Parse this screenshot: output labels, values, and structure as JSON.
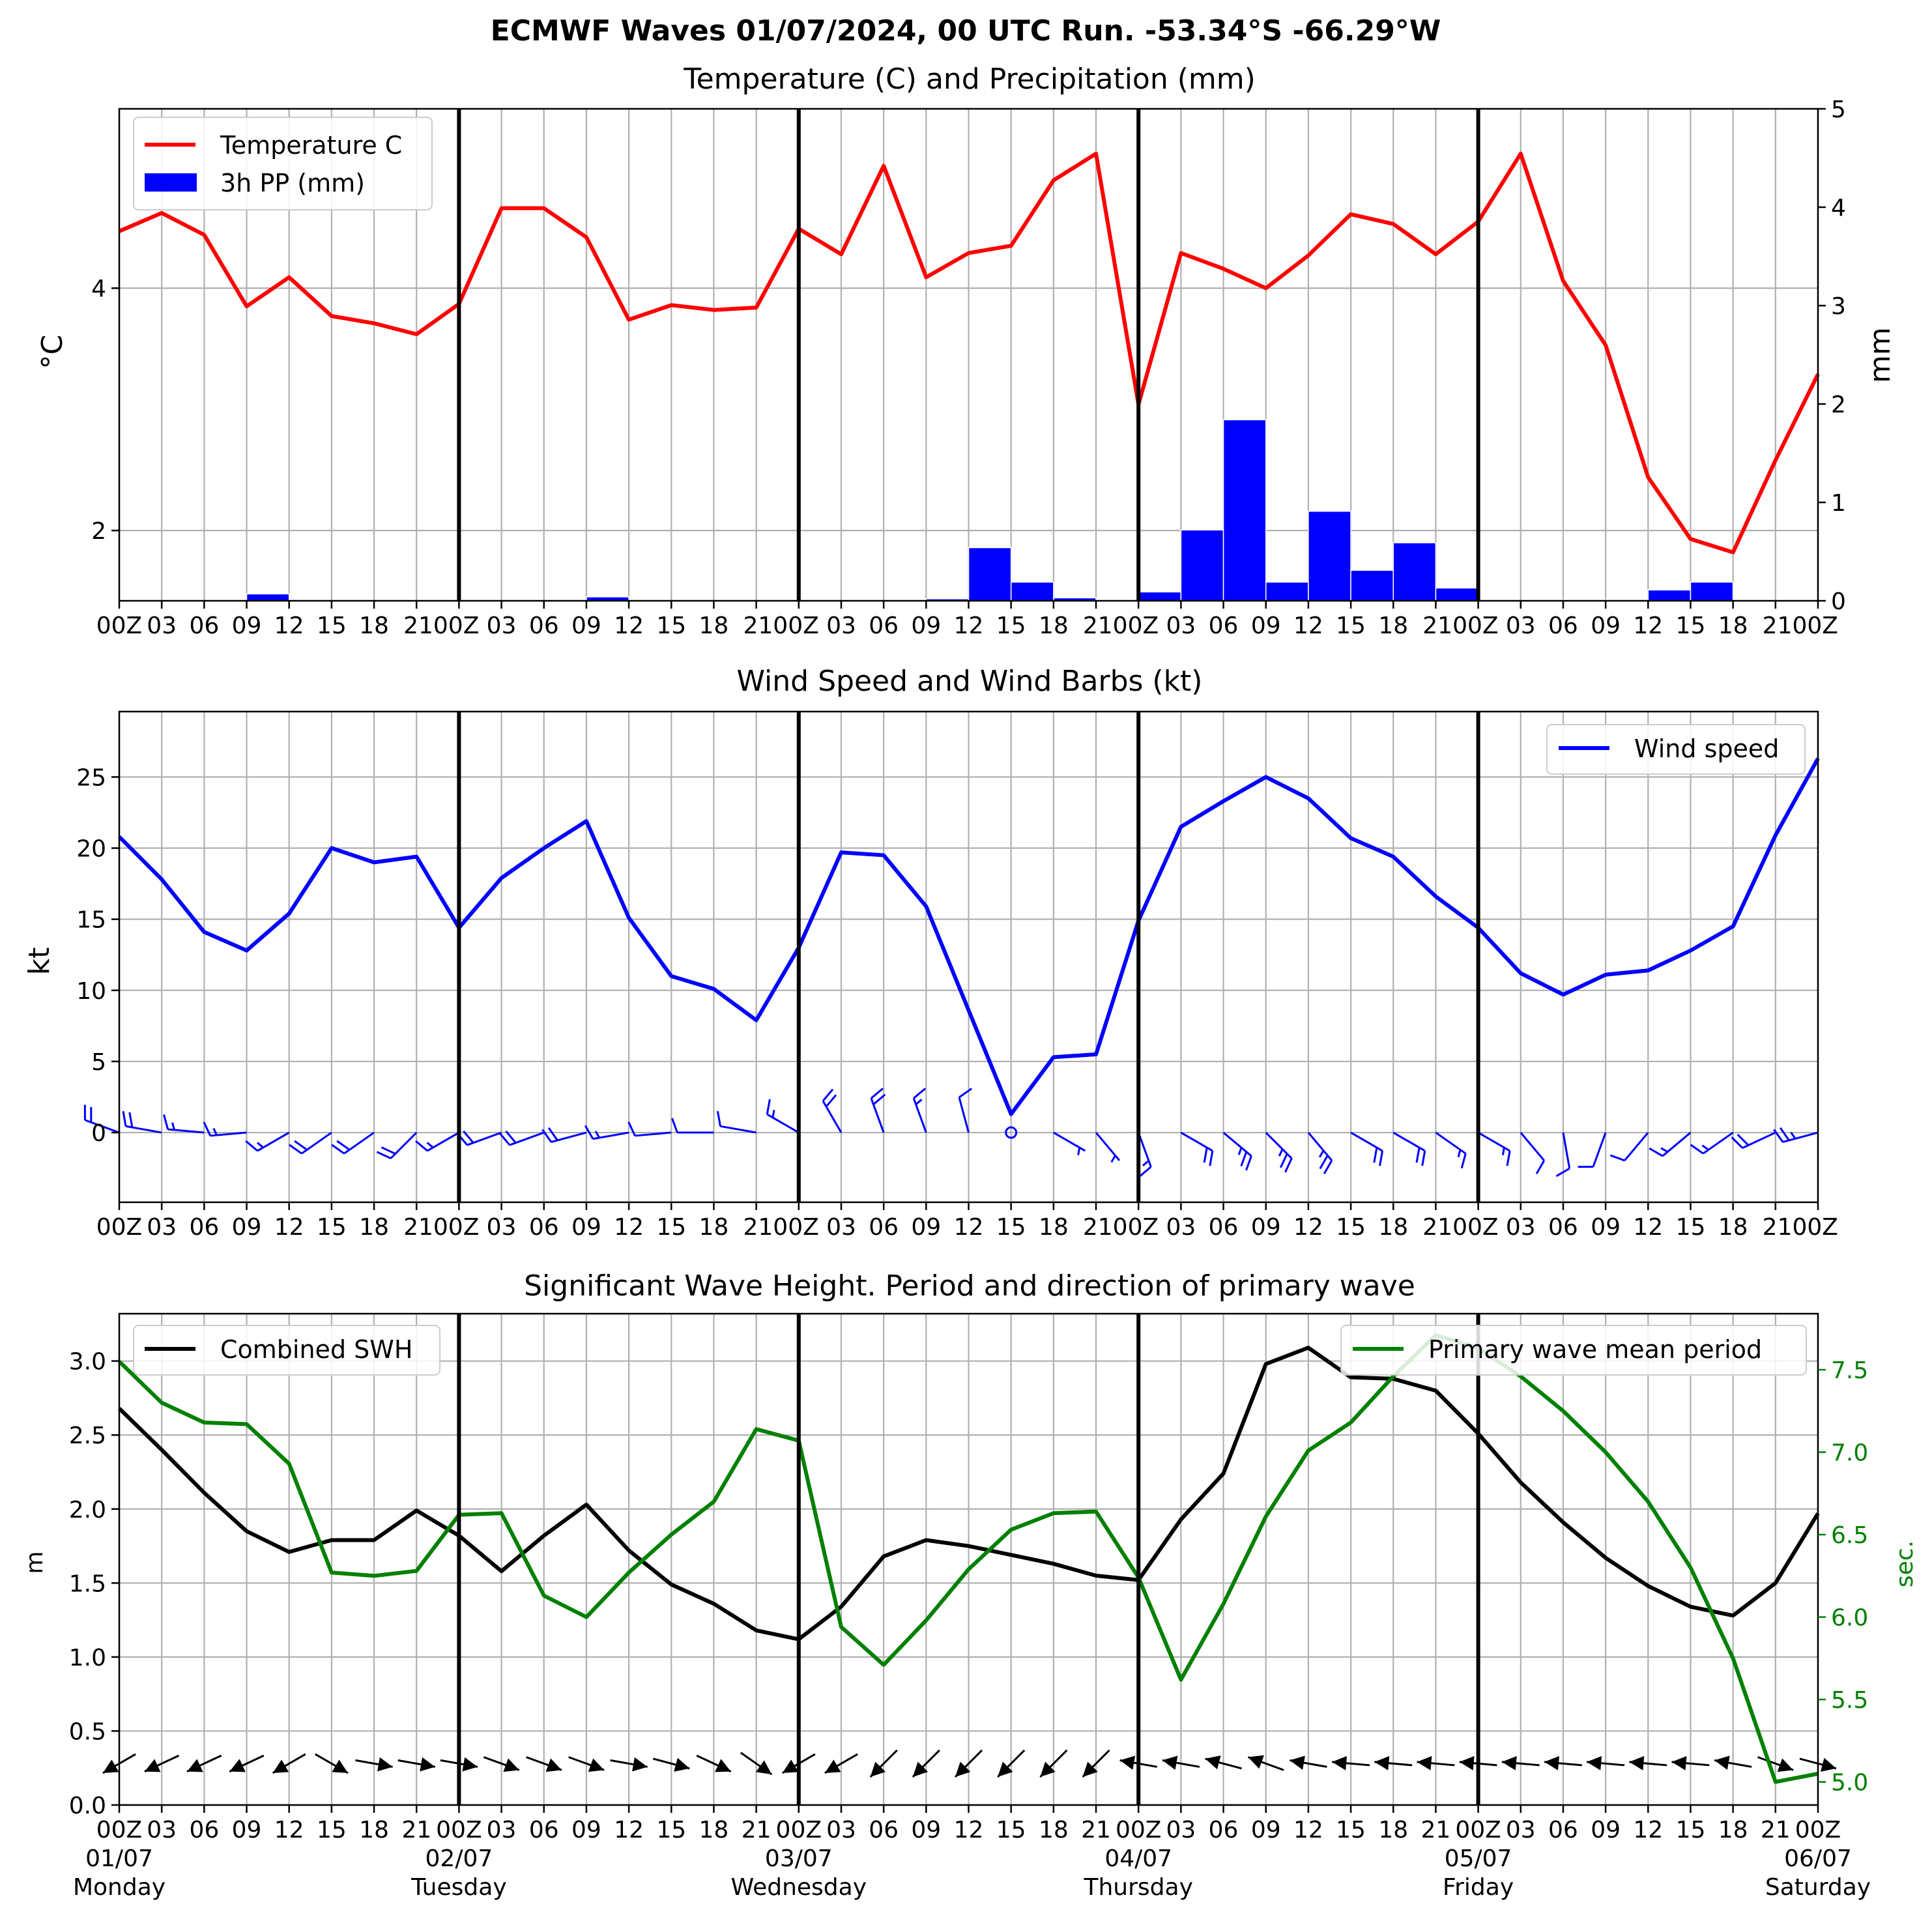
{
  "suptitle": "ECMWF Waves 01/07/2024, 00 UTC Run. -53.34°S -66.29°W",
  "colors": {
    "temperature": "#ff0000",
    "precip": "#0000ff",
    "wind": "#0000ff",
    "swh": "#000000",
    "period": "#008000",
    "grid": "#b0b0b0",
    "day_line": "#000000"
  },
  "x_axis": {
    "hour_ticks": [
      "00Z",
      "03",
      "06",
      "09",
      "12",
      "15",
      "18",
      "21",
      "00Z",
      "03",
      "06",
      "09",
      "12",
      "15",
      "18",
      "21",
      "00Z",
      "03",
      "06",
      "09",
      "12",
      "15",
      "18",
      "21",
      "00Z",
      "03",
      "06",
      "09",
      "12",
      "15",
      "18",
      "21",
      "00Z",
      "03",
      "06",
      "09",
      "12",
      "15",
      "18",
      "21",
      "00Z"
    ],
    "upper_tick_labels": [
      "00Z",
      "03",
      "06",
      "09",
      "12",
      "15",
      "18",
      "2100Z",
      "03",
      "06",
      "09",
      "12",
      "15",
      "18",
      "2100Z",
      "03",
      "06",
      "09",
      "12",
      "15",
      "18",
      "2100Z",
      "03",
      "06",
      "09",
      "12",
      "15",
      "18",
      "2100Z",
      "03",
      "06",
      "09",
      "12",
      "15",
      "18",
      "2100Z"
    ],
    "bottom_tick_labels": [
      "00Z",
      "03",
      "06",
      "09",
      "12",
      "15",
      "18",
      "21",
      "00Z",
      "03",
      "06",
      "09",
      "12",
      "15",
      "18",
      "21",
      "00Z",
      "03",
      "06",
      "09",
      "12",
      "15",
      "18",
      "21",
      "00Z",
      "03",
      "06",
      "09",
      "12",
      "15",
      "18",
      "21",
      "00Z",
      "03",
      "06",
      "09",
      "12",
      "15",
      "18",
      "21",
      "00Z"
    ],
    "day_dates": [
      "01/07",
      "02/07",
      "03/07",
      "04/07",
      "05/07",
      "06/07"
    ],
    "day_names": [
      "Monday",
      "Tuesday",
      "Wednesday",
      "Thursday",
      "Friday",
      "Saturday"
    ],
    "range_hours": [
      0,
      120
    ]
  },
  "chart_data": [
    {
      "type": "line",
      "title": "Temperature (C) and Precipitation (mm)",
      "ylabel": "°C",
      "y2label": "mm",
      "ylim": [
        1.42,
        5.48
      ],
      "y2lim": [
        0,
        5
      ],
      "yticks": [
        2,
        4
      ],
      "y2ticks": [
        0,
        1,
        2,
        3,
        4,
        5
      ],
      "legend": "upper-left",
      "grid": true,
      "x_hours": [
        0,
        3,
        6,
        9,
        12,
        15,
        18,
        21,
        24,
        27,
        30,
        33,
        36,
        39,
        42,
        45,
        48,
        51,
        54,
        57,
        60,
        63,
        66,
        69,
        72,
        75,
        78,
        81,
        84,
        87,
        90,
        93,
        96,
        99,
        102,
        105,
        108,
        111,
        114,
        117,
        120
      ],
      "series": [
        {
          "name": "Temperature C",
          "kind": "line",
          "axis": "left",
          "values": [
            4.47,
            4.62,
            4.44,
            3.85,
            4.09,
            3.77,
            3.71,
            3.62,
            3.87,
            4.66,
            4.66,
            4.42,
            3.74,
            3.86,
            3.82,
            3.84,
            4.49,
            4.28,
            5.01,
            4.09,
            4.29,
            4.35,
            4.89,
            5.11,
            3.04,
            4.29,
            4.16,
            4.0,
            4.27,
            4.61,
            4.53,
            4.28,
            4.55,
            5.11,
            4.06,
            3.53,
            2.44,
            1.93,
            1.82,
            2.58,
            3.29
          ]
        },
        {
          "name": "3h PP (mm)",
          "kind": "bar",
          "axis": "right",
          "start_hours": [
            0,
            3,
            6,
            9,
            12,
            15,
            18,
            21,
            24,
            27,
            30,
            33,
            36,
            39,
            42,
            45,
            48,
            51,
            54,
            57,
            60,
            63,
            66,
            69,
            72,
            75,
            78,
            81,
            84,
            87,
            90,
            93,
            96,
            99,
            102,
            105,
            108,
            111,
            114,
            117
          ],
          "values": [
            0,
            0,
            0,
            0.07,
            0,
            0,
            0,
            0,
            0,
            0,
            0,
            0.04,
            0,
            0,
            0,
            0,
            0,
            0,
            0,
            0.02,
            0.54,
            0.19,
            0.03,
            0,
            0.09,
            0.72,
            1.84,
            0.19,
            0.91,
            0.31,
            0.59,
            0.13,
            0,
            0,
            0.01,
            0,
            0.11,
            0.19,
            0,
            0
          ]
        }
      ]
    },
    {
      "type": "line",
      "title": "Wind Speed and Wind Barbs (kt)",
      "ylabel": "kt",
      "ylim": [
        -4.9,
        29.6
      ],
      "yticks": [
        0,
        5,
        10,
        15,
        20,
        25
      ],
      "legend": "upper-right",
      "grid": true,
      "x_hours": [
        0,
        3,
        6,
        9,
        12,
        15,
        18,
        21,
        24,
        27,
        30,
        33,
        36,
        39,
        42,
        45,
        48,
        51,
        54,
        57,
        60,
        63,
        66,
        69,
        72,
        75,
        78,
        81,
        84,
        87,
        90,
        93,
        96,
        99,
        102,
        105,
        108,
        111,
        114,
        117,
        120
      ],
      "series": [
        {
          "name": "Wind speed",
          "values": [
            20.8,
            17.8,
            14.1,
            12.8,
            15.4,
            20.0,
            19.0,
            19.4,
            14.4,
            17.9,
            20.0,
            21.9,
            15.1,
            11.0,
            10.1,
            7.9,
            13.0,
            19.7,
            19.5,
            15.9,
            8.6,
            1.3,
            5.3,
            5.5,
            14.9,
            21.5,
            23.3,
            25.0,
            23.5,
            20.7,
            19.4,
            16.6,
            14.4,
            11.2,
            9.7,
            11.1,
            11.4,
            12.8,
            14.5,
            20.9,
            26.3
          ]
        }
      ],
      "barb_directions_deg": [
        290,
        280,
        275,
        265,
        240,
        235,
        235,
        225,
        240,
        250,
        250,
        255,
        260,
        265,
        270,
        280,
        300,
        330,
        340,
        340,
        345,
        0,
        120,
        140,
        160,
        120,
        130,
        135,
        140,
        120,
        120,
        125,
        120,
        140,
        170,
        200,
        220,
        230,
        235,
        245,
        255
      ]
    },
    {
      "type": "line",
      "title": "Significant Wave Height. Period and direction of primary wave",
      "ylabel": "m",
      "y2label": "sec.",
      "ylim": [
        0,
        3.32
      ],
      "y2lim": [
        4.86,
        7.84
      ],
      "yticks": [
        0.0,
        0.5,
        1.0,
        1.5,
        2.0,
        2.5,
        3.0
      ],
      "y2ticks": [
        5.0,
        5.5,
        6.0,
        6.5,
        7.0,
        7.5
      ],
      "grid": true,
      "x_hours": [
        0,
        3,
        6,
        9,
        12,
        15,
        18,
        21,
        24,
        27,
        30,
        33,
        36,
        39,
        42,
        45,
        48,
        51,
        54,
        57,
        60,
        63,
        66,
        69,
        72,
        75,
        78,
        81,
        84,
        87,
        90,
        93,
        96,
        99,
        102,
        105,
        108,
        111,
        114,
        117,
        120
      ],
      "series": [
        {
          "name": "Combined SWH",
          "axis": "left",
          "legend": "upper-left",
          "values": [
            2.68,
            2.4,
            2.11,
            1.85,
            1.71,
            1.79,
            1.79,
            1.99,
            1.82,
            1.58,
            1.82,
            2.03,
            1.72,
            1.49,
            1.36,
            1.18,
            1.12,
            1.34,
            1.68,
            1.79,
            1.75,
            1.69,
            1.63,
            1.55,
            1.52,
            1.93,
            2.24,
            2.98,
            3.09,
            2.89,
            2.88,
            2.8,
            2.51,
            2.18,
            1.91,
            1.67,
            1.48,
            1.34,
            1.28,
            1.5,
            1.97
          ]
        },
        {
          "name": "Primary wave mean period",
          "axis": "right",
          "legend": "upper-right",
          "values": [
            7.55,
            7.3,
            7.18,
            7.17,
            6.93,
            6.27,
            6.25,
            6.28,
            6.62,
            6.63,
            6.13,
            6.0,
            6.27,
            6.5,
            6.7,
            7.14,
            7.07,
            5.94,
            5.71,
            5.98,
            6.29,
            6.53,
            6.63,
            6.64,
            6.24,
            5.62,
            6.08,
            6.61,
            7.01,
            7.18,
            7.46,
            7.71,
            7.63,
            7.46,
            7.25,
            7.0,
            6.7,
            6.3,
            5.75,
            5.0,
            5.05
          ]
        }
      ],
      "wave_direction_from_deg": [
        60,
        65,
        65,
        65,
        60,
        300,
        280,
        280,
        280,
        290,
        290,
        290,
        280,
        285,
        295,
        305,
        60,
        60,
        45,
        45,
        45,
        45,
        45,
        45,
        100,
        100,
        105,
        110,
        100,
        95,
        95,
        95,
        95,
        95,
        95,
        95,
        95,
        95,
        100,
        290,
        285
      ]
    }
  ]
}
